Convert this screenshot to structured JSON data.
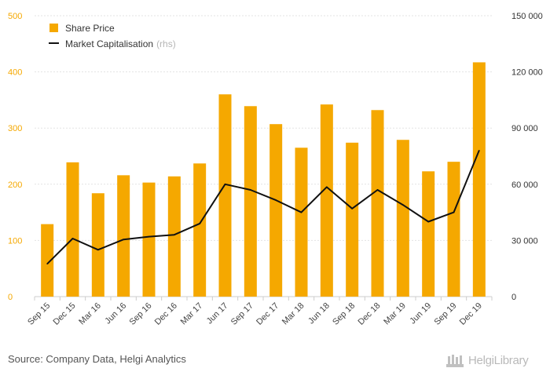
{
  "chart_data": {
    "type": "bar",
    "categories": [
      "Sep 15",
      "Dec 15",
      "Mar 16",
      "Jun 16",
      "Sep 16",
      "Dec 16",
      "Mar 17",
      "Jun 17",
      "Sep 17",
      "Dec 17",
      "Mar 18",
      "Jun 18",
      "Sep 18",
      "Dec 18",
      "Mar 19",
      "Jun 19",
      "Sep 19",
      "Dec 19"
    ],
    "series": [
      {
        "name": "Share Price",
        "axis": "left",
        "type": "bar",
        "color": "#f5a800",
        "values": [
          129,
          239,
          184,
          216,
          203,
          214,
          237,
          360,
          339,
          307,
          265,
          342,
          274,
          332,
          279,
          223,
          240,
          417
        ]
      },
      {
        "name": "Market Capitalisation",
        "name_suffix": "(rhs)",
        "axis": "right",
        "type": "line",
        "color": "#111111",
        "values": [
          17500,
          31000,
          25000,
          30500,
          32000,
          33000,
          39000,
          60000,
          57000,
          51500,
          45000,
          58500,
          47000,
          57000,
          49000,
          40000,
          45000,
          78000
        ]
      }
    ],
    "y_left": {
      "ticks": [
        "0",
        "100",
        "200",
        "300",
        "400",
        "500"
      ],
      "range": [
        0,
        500
      ],
      "color": "#f5a800"
    },
    "y_right": {
      "ticks": [
        "0",
        "30 000",
        "60 000",
        "90 000",
        "120 000",
        "150 000"
      ],
      "range": [
        0,
        150000
      ]
    },
    "grid": true,
    "legend_position": "top-left"
  },
  "footer": {
    "source": "Source: Company Data, Helgi Analytics",
    "brand": "HelgiLibrary"
  }
}
